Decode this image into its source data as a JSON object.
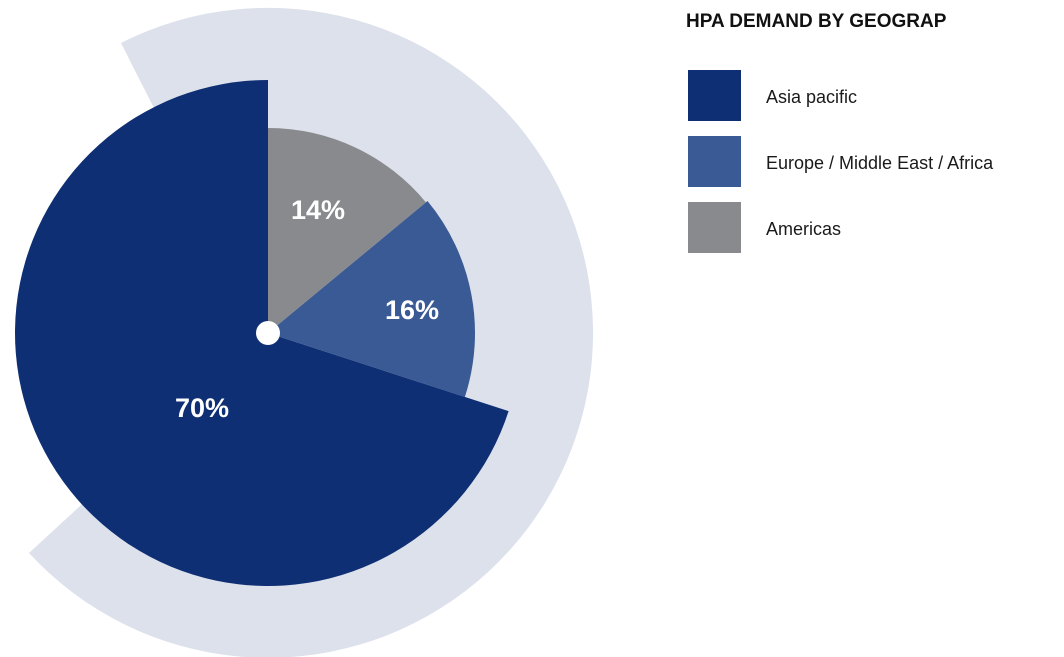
{
  "chart_data": {
    "type": "pie",
    "title": "HPA DEMAND BY GEOGRAP",
    "categories": [
      "Asia pacific",
      "Europe / Middle East / Africa",
      "Americas"
    ],
    "values": [
      70,
      16,
      14
    ],
    "value_labels": [
      "70%",
      "16%",
      "14%"
    ],
    "colors": [
      "#0e2f73",
      "#3a5a95",
      "#898a8e"
    ],
    "legend": "upper right"
  }
}
